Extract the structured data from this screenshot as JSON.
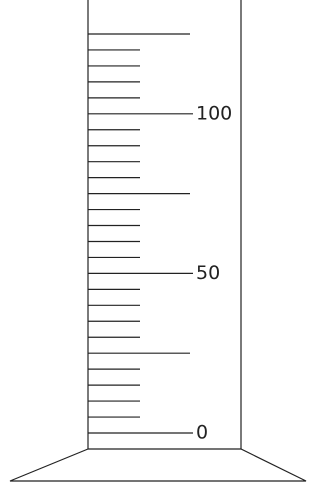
{
  "scale": {
    "range": [
      0,
      125
    ],
    "labels": [
      0,
      50,
      100
    ]
  }
}
